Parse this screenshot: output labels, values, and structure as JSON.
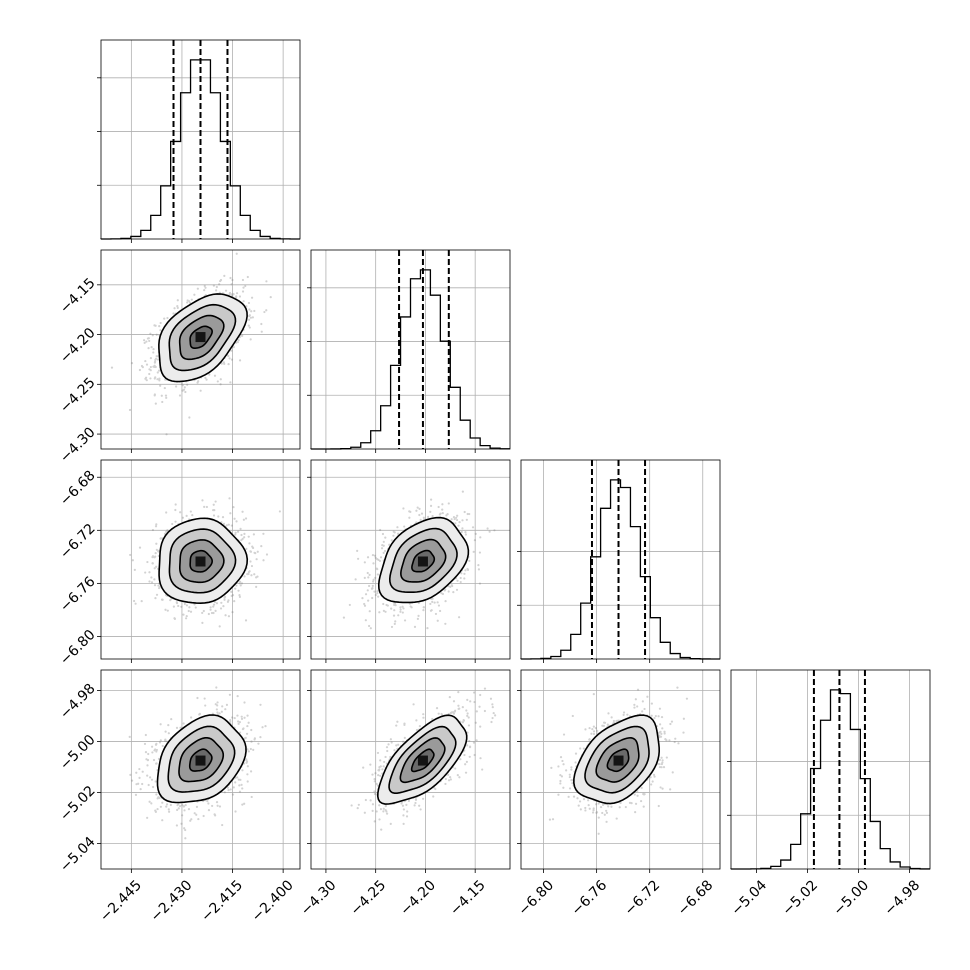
{
  "chart_data": {
    "type": "corner",
    "colors": {
      "samples": "#7f7f7f",
      "contour": "#000000",
      "grid": "#b0b0b0",
      "density_levels": [
        "#ececec",
        "#c9c9c9",
        "#9a9a9a",
        "#6a6a6a"
      ],
      "density_peak": "#141414"
    },
    "parameters": [
      {
        "range": [
          -2.454,
          -2.395
        ],
        "ticks": [
          -2.445,
          -2.43,
          -2.415,
          -2.4
        ],
        "tick_labels": [
          "−2.445",
          "−2.430",
          "−2.415",
          "−2.400"
        ],
        "quantiles": [
          -2.4325,
          -2.4245,
          -2.4165
        ],
        "median": -2.4245,
        "sigma": 0.0065,
        "hist_y_ticks": [
          0.3,
          0.6,
          0.9
        ]
      },
      {
        "range": [
          -4.315,
          -4.115
        ],
        "ticks": [
          -4.3,
          -4.25,
          -4.2,
          -4.15
        ],
        "tick_labels": [
          "−4.30",
          "−4.25",
          "−4.20",
          "−4.15"
        ],
        "quantiles": [
          -4.2265,
          -4.2025,
          -4.1765
        ],
        "median": -4.2025,
        "sigma": 0.022,
        "hist_y_ticks": [
          0.3,
          0.6,
          0.9
        ]
      },
      {
        "range": [
          -6.817,
          -6.667
        ],
        "ticks": [
          -6.8,
          -6.76,
          -6.72,
          -6.68
        ],
        "tick_labels": [
          "−6.80",
          "−6.76",
          "−6.72",
          "−6.68"
        ],
        "quantiles": [
          -6.7635,
          -6.7435,
          -6.7235
        ],
        "median": -6.7435,
        "sigma": 0.016,
        "hist_y_ticks": [
          0.3,
          0.6
        ]
      },
      {
        "range": [
          -5.05,
          -4.972
        ],
        "ticks": [
          -5.04,
          -5.02,
          -5.0,
          -4.98
        ],
        "tick_labels": [
          "−5.04",
          "−5.02",
          "−5.00",
          "−4.98"
        ],
        "quantiles": [
          -5.0175,
          -5.0075,
          -4.9975
        ],
        "median": -5.0075,
        "sigma": 0.0085,
        "hist_y_ticks": [
          0.3,
          0.6
        ]
      }
    ],
    "correlations": [
      {
        "row": 1,
        "col": 0,
        "rho": 0.45
      },
      {
        "row": 2,
        "col": 0,
        "rho": 0.05
      },
      {
        "row": 2,
        "col": 1,
        "rho": 0.35
      },
      {
        "row": 3,
        "col": 0,
        "rho": 0.3
      },
      {
        "row": 3,
        "col": 1,
        "rho": 0.65
      },
      {
        "row": 3,
        "col": 2,
        "rho": 0.4
      }
    ],
    "histogram": {
      "bins": 20,
      "peak_fraction_of_axis": 0.9
    },
    "contour_levels_sigma": [
      0.5,
      1.0,
      1.5,
      2.0
    ],
    "grid": true,
    "legend": "none"
  }
}
